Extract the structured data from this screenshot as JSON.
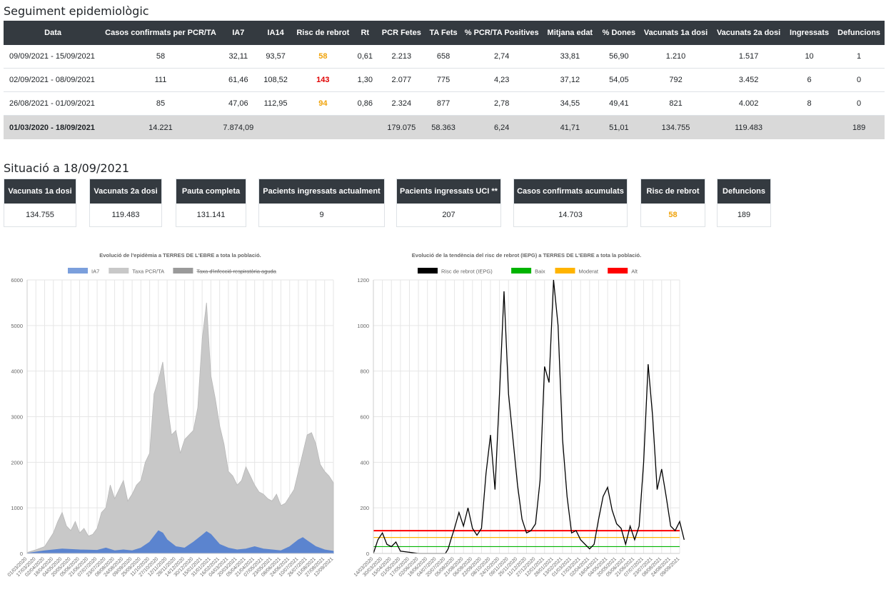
{
  "section1_title": "Seguiment epidemiològic",
  "table": {
    "headers": [
      "Data",
      "Casos confirmats per PCR/TA",
      "IA7",
      "IA14",
      "Risc de rebrot",
      "Rt",
      "PCR Fetes",
      "TA Fets",
      "% PCR/TA Positives",
      "Mitjana edat",
      "% Dones",
      "Vacunats 1a dosi",
      "Vacunats 2a dosi",
      "Ingressats",
      "Defuncions"
    ],
    "rows": [
      {
        "data": "09/09/2021 - 15/09/2021",
        "casos": "58",
        "ia7": "32,11",
        "ia14": "93,57",
        "risc": "58",
        "risc_level": "orange",
        "rt": "0,61",
        "pcr": "2.213",
        "ta": "658",
        "pos": "2,74",
        "edat": "33,81",
        "dones": "56,90",
        "vac1": "1.210",
        "vac2": "1.517",
        "ingressats": "10",
        "defuncions": "1"
      },
      {
        "data": "02/09/2021 - 08/09/2021",
        "casos": "111",
        "ia7": "61,46",
        "ia14": "108,52",
        "risc": "143",
        "risc_level": "red",
        "rt": "1,30",
        "pcr": "2.077",
        "ta": "775",
        "pos": "4,23",
        "edat": "37,12",
        "dones": "54,05",
        "vac1": "792",
        "vac2": "3.452",
        "ingressats": "6",
        "defuncions": "0"
      },
      {
        "data": "26/08/2021 - 01/09/2021",
        "casos": "85",
        "ia7": "47,06",
        "ia14": "112,95",
        "risc": "94",
        "risc_level": "orange",
        "rt": "0,86",
        "pcr": "2.324",
        "ta": "877",
        "pos": "2,78",
        "edat": "34,55",
        "dones": "49,41",
        "vac1": "821",
        "vac2": "4.002",
        "ingressats": "8",
        "defuncions": "0"
      }
    ],
    "total": {
      "data": "01/03/2020 - 18/09/2021",
      "casos": "14.221",
      "ia7": "7.874,09",
      "ia14": "",
      "risc": "",
      "rt": "",
      "pcr": "179.075",
      "ta": "58.363",
      "pos": "6,24",
      "edat": "41,71",
      "dones": "51,01",
      "vac1": "134.755",
      "vac2": "119.483",
      "ingressats": "",
      "defuncions": "189"
    }
  },
  "section2_title": "Situació a 18/09/2021",
  "cards": [
    {
      "label": "Vacunats 1a dosi",
      "value": "134.755"
    },
    {
      "label": "Vacunats 2a dosi",
      "value": "119.483"
    },
    {
      "label": "Pauta completa",
      "value": "131.141"
    },
    {
      "label": "Pacients ingressats actualment",
      "value": "9"
    },
    {
      "label": "Pacients ingressats UCI **",
      "value": "207"
    },
    {
      "label": "Casos confirmats acumulats",
      "value": "14.703"
    },
    {
      "label": "Risc de rebrot",
      "value": "58",
      "highlight": "#f0a30a"
    },
    {
      "label": "Defuncions",
      "value": "189"
    }
  ],
  "colors": {
    "dark": "#343a40",
    "orange": "#f0a30a",
    "red": "#e00000"
  },
  "chart_data": [
    {
      "type": "area",
      "title": "Evolució de l'epidèmia a TERRES DE L'EBRE a tota la població.",
      "ylim": [
        0,
        6000
      ],
      "yticks": [
        0,
        1000,
        2000,
        3000,
        4000,
        5000,
        6000
      ],
      "xticks": [
        "01/03/2020",
        "17/03/2020",
        "02/04/2020",
        "18/04/2020",
        "04/05/2020",
        "20/05/2020",
        "05/06/2020",
        "21/06/2020",
        "07/07/2020",
        "23/07/2020",
        "08/08/2020",
        "24/08/2020",
        "09/09/2020",
        "25/09/2020",
        "11/10/2020",
        "27/10/2020",
        "12/11/2020",
        "28/11/2020",
        "14/12/2020",
        "30/12/2020",
        "15/01/2021",
        "31/01/2021",
        "16/02/2021",
        "04/03/2021",
        "20/03/2021",
        "05/04/2021",
        "21/04/2021",
        "07/05/2021",
        "23/05/2021",
        "08/06/2021",
        "24/06/2021",
        "10/07/2021",
        "26/07/2021",
        "11/08/2021",
        "27/08/2021",
        "12/09/2021"
      ],
      "legend": [
        {
          "name": "IA7",
          "color": "#7b9fdc"
        },
        {
          "name": "Taxa PCR/TA",
          "color": "#c8c8c8"
        },
        {
          "name": "Taxa d'infecció respiratòria aguda",
          "color": "#9a9a9a",
          "hidden": true
        }
      ],
      "series": [
        {
          "name": "Taxa PCR/TA",
          "color": "#c8c8c8",
          "points": [
            [
              0,
              20
            ],
            [
              1,
              80
            ],
            [
              2,
              150
            ],
            [
              2.5,
              300
            ],
            [
              3,
              450
            ],
            [
              3.5,
              700
            ],
            [
              4,
              900
            ],
            [
              4.5,
              600
            ],
            [
              5,
              500
            ],
            [
              5.5,
              700
            ],
            [
              6,
              450
            ],
            [
              6.5,
              550
            ],
            [
              7,
              380
            ],
            [
              7.5,
              420
            ],
            [
              8,
              550
            ],
            [
              8.5,
              900
            ],
            [
              9,
              1000
            ],
            [
              9.5,
              1500
            ],
            [
              10,
              1200
            ],
            [
              10.5,
              1400
            ],
            [
              11,
              1600
            ],
            [
              11.5,
              1150
            ],
            [
              12,
              1300
            ],
            [
              12.5,
              1500
            ],
            [
              13,
              1600
            ],
            [
              13.5,
              2000
            ],
            [
              14,
              2200
            ],
            [
              14.5,
              3500
            ],
            [
              15,
              3800
            ],
            [
              15.5,
              4200
            ],
            [
              16,
              3300
            ],
            [
              16.5,
              2600
            ],
            [
              17,
              2700
            ],
            [
              17.5,
              2200
            ],
            [
              18,
              2500
            ],
            [
              18.5,
              2600
            ],
            [
              19,
              2700
            ],
            [
              19.5,
              3200
            ],
            [
              20,
              4700
            ],
            [
              20.5,
              5500
            ],
            [
              21,
              3900
            ],
            [
              21.5,
              3400
            ],
            [
              22,
              2800
            ],
            [
              22.5,
              2400
            ],
            [
              23,
              1800
            ],
            [
              23.5,
              1700
            ],
            [
              24,
              1500
            ],
            [
              24.5,
              1600
            ],
            [
              25,
              1900
            ],
            [
              25.5,
              1700
            ],
            [
              26,
              1500
            ],
            [
              26.5,
              1350
            ],
            [
              27,
              1300
            ],
            [
              27.5,
              1200
            ],
            [
              28,
              1150
            ],
            [
              28.5,
              1300
            ],
            [
              29,
              1050
            ],
            [
              29.5,
              1100
            ],
            [
              30,
              1250
            ],
            [
              30.5,
              1400
            ],
            [
              31,
              1800
            ],
            [
              31.5,
              2200
            ],
            [
              32,
              2600
            ],
            [
              32.5,
              2650
            ],
            [
              33,
              2400
            ],
            [
              33.5,
              1950
            ],
            [
              34,
              1800
            ],
            [
              34.5,
              1700
            ],
            [
              35,
              1550
            ]
          ]
        },
        {
          "name": "IA7",
          "color": "#5b84cf",
          "points": [
            [
              0,
              5
            ],
            [
              2,
              60
            ],
            [
              4,
              100
            ],
            [
              6,
              80
            ],
            [
              8,
              70
            ],
            [
              9,
              120
            ],
            [
              10,
              60
            ],
            [
              11,
              80
            ],
            [
              12,
              60
            ],
            [
              13,
              120
            ],
            [
              14,
              250
            ],
            [
              15,
              500
            ],
            [
              15.5,
              450
            ],
            [
              16,
              300
            ],
            [
              17,
              150
            ],
            [
              18,
              120
            ],
            [
              19,
              250
            ],
            [
              20,
              400
            ],
            [
              20.5,
              480
            ],
            [
              21,
              420
            ],
            [
              22,
              200
            ],
            [
              23,
              120
            ],
            [
              24,
              80
            ],
            [
              25,
              100
            ],
            [
              26,
              150
            ],
            [
              27,
              100
            ],
            [
              28,
              80
            ],
            [
              29,
              60
            ],
            [
              30,
              150
            ],
            [
              31,
              300
            ],
            [
              31.5,
              350
            ],
            [
              32,
              280
            ],
            [
              33,
              150
            ],
            [
              34,
              80
            ],
            [
              35,
              50
            ]
          ]
        }
      ]
    },
    {
      "type": "line",
      "title": "Evolució de la tendència del risc de rebrot (IEPG) a TERRES DE L'EBRE a tota la població.",
      "ylim": [
        0,
        1200
      ],
      "yticks": [
        0,
        200,
        400,
        600,
        800,
        1000,
        1200
      ],
      "xticks": [
        "14/03/2020",
        "30/03/2020",
        "15/04/2020",
        "01/05/2020",
        "17/05/2020",
        "02/06/2020",
        "18/06/2020",
        "04/07/2020",
        "20/07/2020",
        "05/08/2020",
        "21/08/2020",
        "06/09/2020",
        "22/09/2020",
        "08/10/2020",
        "24/10/2020",
        "09/11/2020",
        "25/11/2020",
        "11/12/2020",
        "27/12/2020",
        "12/01/2021",
        "28/01/2021",
        "13/02/2021",
        "01/03/2021",
        "17/03/2021",
        "02/04/2021",
        "18/04/2021",
        "04/05/2021",
        "20/05/2021",
        "05/06/2021",
        "21/06/2021",
        "07/07/2021",
        "23/07/2021",
        "08/08/2021",
        "24/08/2021",
        "09/09/2021"
      ],
      "legend": [
        {
          "name": "Risc de rebrot (IEPG)",
          "color": "#000000"
        },
        {
          "name": "Baix",
          "color": "#00b400"
        },
        {
          "name": "Moderat",
          "color": "#ffb400"
        },
        {
          "name": "Alt",
          "color": "#ff0000"
        }
      ],
      "thresholds": {
        "baix": 30,
        "moderat": 70,
        "alt": 100
      },
      "series": [
        {
          "name": "Risc de rebrot (IEPG)",
          "color": "#000000",
          "points": [
            [
              0,
              0
            ],
            [
              0.5,
              60
            ],
            [
              1,
              90
            ],
            [
              1.5,
              40
            ],
            [
              2,
              30
            ],
            [
              2.5,
              50
            ],
            [
              3,
              10
            ],
            [
              4,
              5
            ],
            [
              5,
              0
            ],
            [
              6,
              0
            ],
            [
              7,
              0
            ],
            [
              8,
              0
            ],
            [
              8.3,
              20
            ],
            [
              8.6,
              60
            ],
            [
              9,
              110
            ],
            [
              9.5,
              180
            ],
            [
              10,
              120
            ],
            [
              10.5,
              200
            ],
            [
              11,
              110
            ],
            [
              11.5,
              80
            ],
            [
              12,
              110
            ],
            [
              12.5,
              350
            ],
            [
              13,
              520
            ],
            [
              13.5,
              280
            ],
            [
              14,
              700
            ],
            [
              14.5,
              1150
            ],
            [
              15,
              700
            ],
            [
              15.5,
              500
            ],
            [
              16,
              300
            ],
            [
              16.5,
              150
            ],
            [
              17,
              90
            ],
            [
              17.5,
              100
            ],
            [
              18,
              130
            ],
            [
              18.5,
              320
            ],
            [
              19,
              820
            ],
            [
              19.5,
              750
            ],
            [
              20,
              1200
            ],
            [
              20.5,
              1000
            ],
            [
              21,
              500
            ],
            [
              21.5,
              250
            ],
            [
              22,
              90
            ],
            [
              22.5,
              100
            ],
            [
              23,
              60
            ],
            [
              23.5,
              40
            ],
            [
              24,
              20
            ],
            [
              24.5,
              40
            ],
            [
              25,
              150
            ],
            [
              25.5,
              250
            ],
            [
              26,
              290
            ],
            [
              26.5,
              190
            ],
            [
              27,
              130
            ],
            [
              27.5,
              110
            ],
            [
              28,
              40
            ],
            [
              28.5,
              120
            ],
            [
              29,
              60
            ],
            [
              29.5,
              120
            ],
            [
              30,
              400
            ],
            [
              30.5,
              830
            ],
            [
              31,
              600
            ],
            [
              31.5,
              280
            ],
            [
              32,
              370
            ],
            [
              32.5,
              250
            ],
            [
              33,
              120
            ],
            [
              33.5,
              100
            ],
            [
              34,
              140
            ],
            [
              34.5,
              60
            ]
          ]
        }
      ]
    }
  ]
}
